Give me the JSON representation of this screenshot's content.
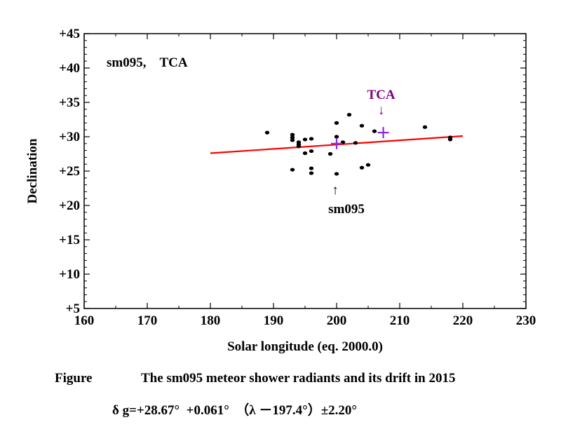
{
  "chart_data": {
    "type": "scatter",
    "xlabel": "Solar longitude (eq. 2000.0)",
    "ylabel": "Declination",
    "xlim": [
      160,
      230
    ],
    "ylim": [
      5,
      45
    ],
    "x_ticks": [
      160,
      170,
      180,
      190,
      200,
      210,
      220,
      230
    ],
    "y_ticks": [
      5,
      10,
      15,
      20,
      25,
      30,
      35,
      40,
      45
    ],
    "x_tick_labels": [
      "160",
      "170",
      "180",
      "190",
      "200",
      "210",
      "220",
      "230"
    ],
    "y_tick_labels": [
      "+5",
      "+10",
      "+15",
      "+20",
      "+25",
      "+30",
      "+35",
      "+40",
      "+45"
    ],
    "grid": false,
    "label_box": "sm095,　TCA",
    "series": [
      {
        "color": "#000000",
        "points": [
          [
            189,
            30.6
          ],
          [
            193,
            30.3
          ],
          [
            193,
            29.9
          ],
          [
            193,
            29.5
          ],
          [
            194,
            29.2
          ],
          [
            194,
            28.9
          ],
          [
            194,
            28.6
          ],
          [
            195,
            29.6
          ],
          [
            195,
            27.6
          ],
          [
            196,
            29.7
          ],
          [
            196,
            27.9
          ],
          [
            196,
            25.4
          ],
          [
            196,
            24.7
          ],
          [
            199,
            27.5
          ],
          [
            193,
            25.2
          ],
          [
            200,
            32.0
          ],
          [
            200,
            30.0
          ],
          [
            200,
            24.6
          ],
          [
            201,
            29.2
          ],
          [
            202,
            33.2
          ],
          [
            203,
            29.1
          ],
          [
            204,
            31.6
          ],
          [
            204,
            25.5
          ],
          [
            205,
            25.9
          ],
          [
            206,
            30.8
          ],
          [
            214,
            31.4
          ],
          [
            218,
            29.9
          ],
          [
            218,
            29.6
          ]
        ]
      }
    ],
    "fit_line": {
      "color": "#ff0000",
      "x": [
        180,
        220
      ],
      "y": [
        27.6,
        30.1
      ]
    },
    "markers": [
      {
        "name": "sm095",
        "x": 200,
        "y": 29.0,
        "symbol": "+",
        "color": "#8a2be2"
      },
      {
        "name": "TCA",
        "x": 207.4,
        "y": 30.6,
        "symbol": "+",
        "color": "#8a2be2"
      }
    ],
    "annotations": [
      {
        "text": "TCA",
        "arrow": "↓",
        "x": 207.4,
        "color": "#800080"
      },
      {
        "text": "sm095",
        "arrow": "↑",
        "x": 200,
        "color": "#000000"
      }
    ]
  },
  "caption": {
    "title_prefix": "Figure",
    "title": "The sm095 meteor shower radiants and its drift in 2015",
    "formula": "δ g=+28.67°  +0.061°  （λ －197.4°）±2.20°"
  }
}
